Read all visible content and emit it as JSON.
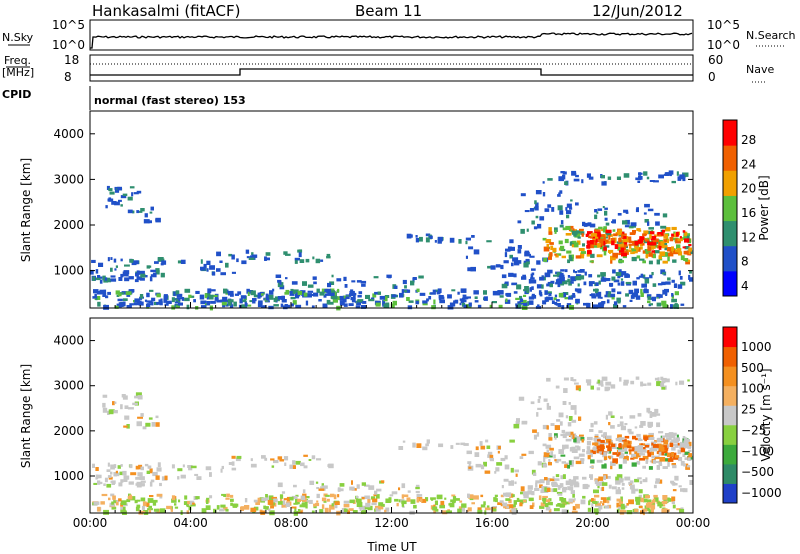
{
  "header": {
    "station": "Hankasalmi (fitACF)",
    "beam": "Beam 11",
    "date": "12/Jun/2012"
  },
  "nsky_panel": {
    "left_label": "N.Sky",
    "right_label": "N.Search",
    "left_ticks": [
      "10^5",
      "10^0"
    ],
    "right_ticks": [
      "10^5",
      "10^0"
    ]
  },
  "freq_panel": {
    "left_label_1": "Freq.",
    "left_label_2": "[MHz]",
    "right_label": "Nave",
    "left_ticks": [
      "18",
      "8"
    ],
    "right_ticks": [
      "60",
      "0"
    ]
  },
  "cpid_panel": {
    "label": "CPID",
    "mode": "normal (fast stereo) 153"
  },
  "chart_data": [
    {
      "type": "heatmap",
      "name": "power",
      "ylabel": "Slant Range [km]",
      "yticks": [
        "4000",
        "3000",
        "2000",
        "1000"
      ],
      "ylim": [
        180,
        4500
      ],
      "colorbar_label": "Power [dB]",
      "colorbar_ticks": [
        "28",
        "24",
        "20",
        "16",
        "12",
        "8",
        "4"
      ],
      "colors": [
        "#0000ff",
        "#2050c8",
        "#2f8f6f",
        "#5cbf3c",
        "#f0a000",
        "#f06000",
        "#ff0000"
      ]
    },
    {
      "type": "heatmap",
      "name": "velocity",
      "ylabel": "Slant Range [km]",
      "yticks": [
        "4000",
        "3000",
        "2000",
        "1000"
      ],
      "ylim": [
        180,
        4500
      ],
      "xlabel": "Time UT",
      "xticks": [
        "00:00",
        "04:00",
        "08:00",
        "12:00",
        "16:00",
        "20:00",
        "00:00"
      ],
      "colorbar_label": "Velocity [m s⁻¹]",
      "colorbar_ticks": [
        "1000",
        "500",
        "100",
        "25",
        "−25",
        "−100",
        "−500",
        "−1000"
      ],
      "colors": [
        "#1f40c8",
        "#2e8a66",
        "#3caa3c",
        "#88d040",
        "#c8c8c8",
        "#f4b060",
        "#f49020",
        "#f06000",
        "#ff0000"
      ]
    }
  ]
}
